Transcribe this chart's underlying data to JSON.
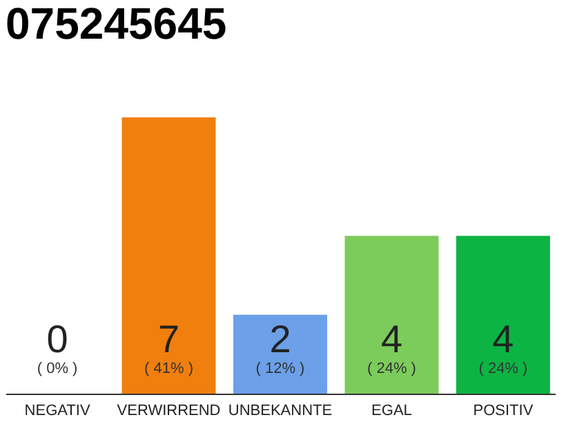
{
  "chart_data": {
    "type": "bar",
    "title": "075245645",
    "categories": [
      "NEGATIV",
      "VERWIRREND",
      "UNBEKANNTE",
      "EGAL",
      "POSITIV"
    ],
    "values": [
      0,
      7,
      2,
      4,
      4
    ],
    "colors": [
      "#9e9e9e",
      "#f07f0e",
      "#6ca0e8",
      "#7ccc5c",
      "#0cb444"
    ],
    "value_labels": [
      "0",
      "7",
      "2",
      "4",
      "4"
    ],
    "annotations": [
      "( 0% )",
      "( 41% )",
      "( 12% )",
      "( 24% )",
      "( 24% )"
    ],
    "tick_labels": "x",
    "grid": false
  }
}
